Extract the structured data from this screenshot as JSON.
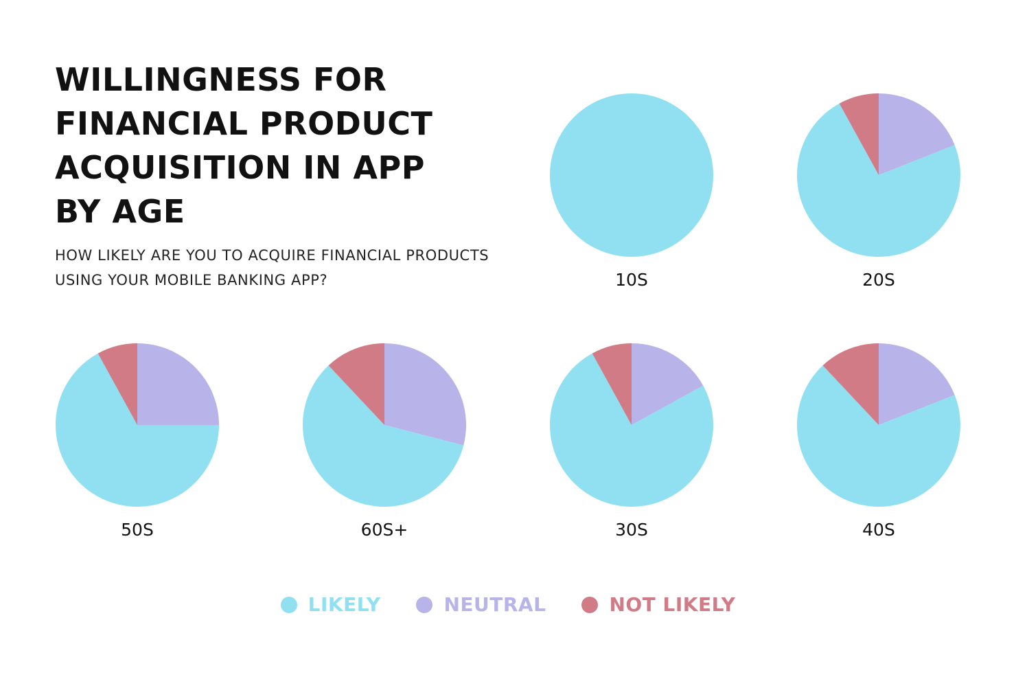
{
  "title_lines": [
    "WILLINGNESS FOR",
    "FINANCIAL PRODUCT",
    "ACQUISITION IN APP",
    "BY AGE"
  ],
  "subtitle_lines": [
    "HOW LIKELY ARE YOU TO ACQUIRE FINANCIAL PRODUCTS",
    "USING YOUR MOBILE BANKING APP?"
  ],
  "colors": {
    "likely": "#91e0f2",
    "neutral": "#b8b3e8",
    "not_likely": "#d07b86"
  },
  "legend": [
    {
      "label": "LIKELY",
      "color": "#91e0f2"
    },
    {
      "label": "NEUTRAL",
      "color": "#b8b3e8"
    },
    {
      "label": "NOT LIKELY",
      "color": "#d07b86"
    }
  ],
  "chart_data": {
    "type": "pie",
    "title": "WILLINGNESS FOR FINANCIAL PRODUCT ACQUISITION IN APP BY AGE",
    "subtitle": "HOW LIKELY ARE YOU TO ACQUIRE FINANCIAL PRODUCTS USING YOUR MOBILE BANKING APP?",
    "categories": [
      "LIKELY",
      "NEUTRAL",
      "NOT LIKELY"
    ],
    "legend_position": "bottom",
    "pies": [
      {
        "label": "10S",
        "values": [
          100,
          0,
          0
        ]
      },
      {
        "label": "20S",
        "values": [
          73,
          19,
          8
        ]
      },
      {
        "label": "50S",
        "values": [
          67,
          25,
          8
        ]
      },
      {
        "label": "60S+",
        "values": [
          59,
          29,
          12
        ]
      },
      {
        "label": "30S",
        "values": [
          75,
          17,
          8
        ]
      },
      {
        "label": "40S",
        "values": [
          69,
          19,
          12
        ]
      }
    ]
  }
}
